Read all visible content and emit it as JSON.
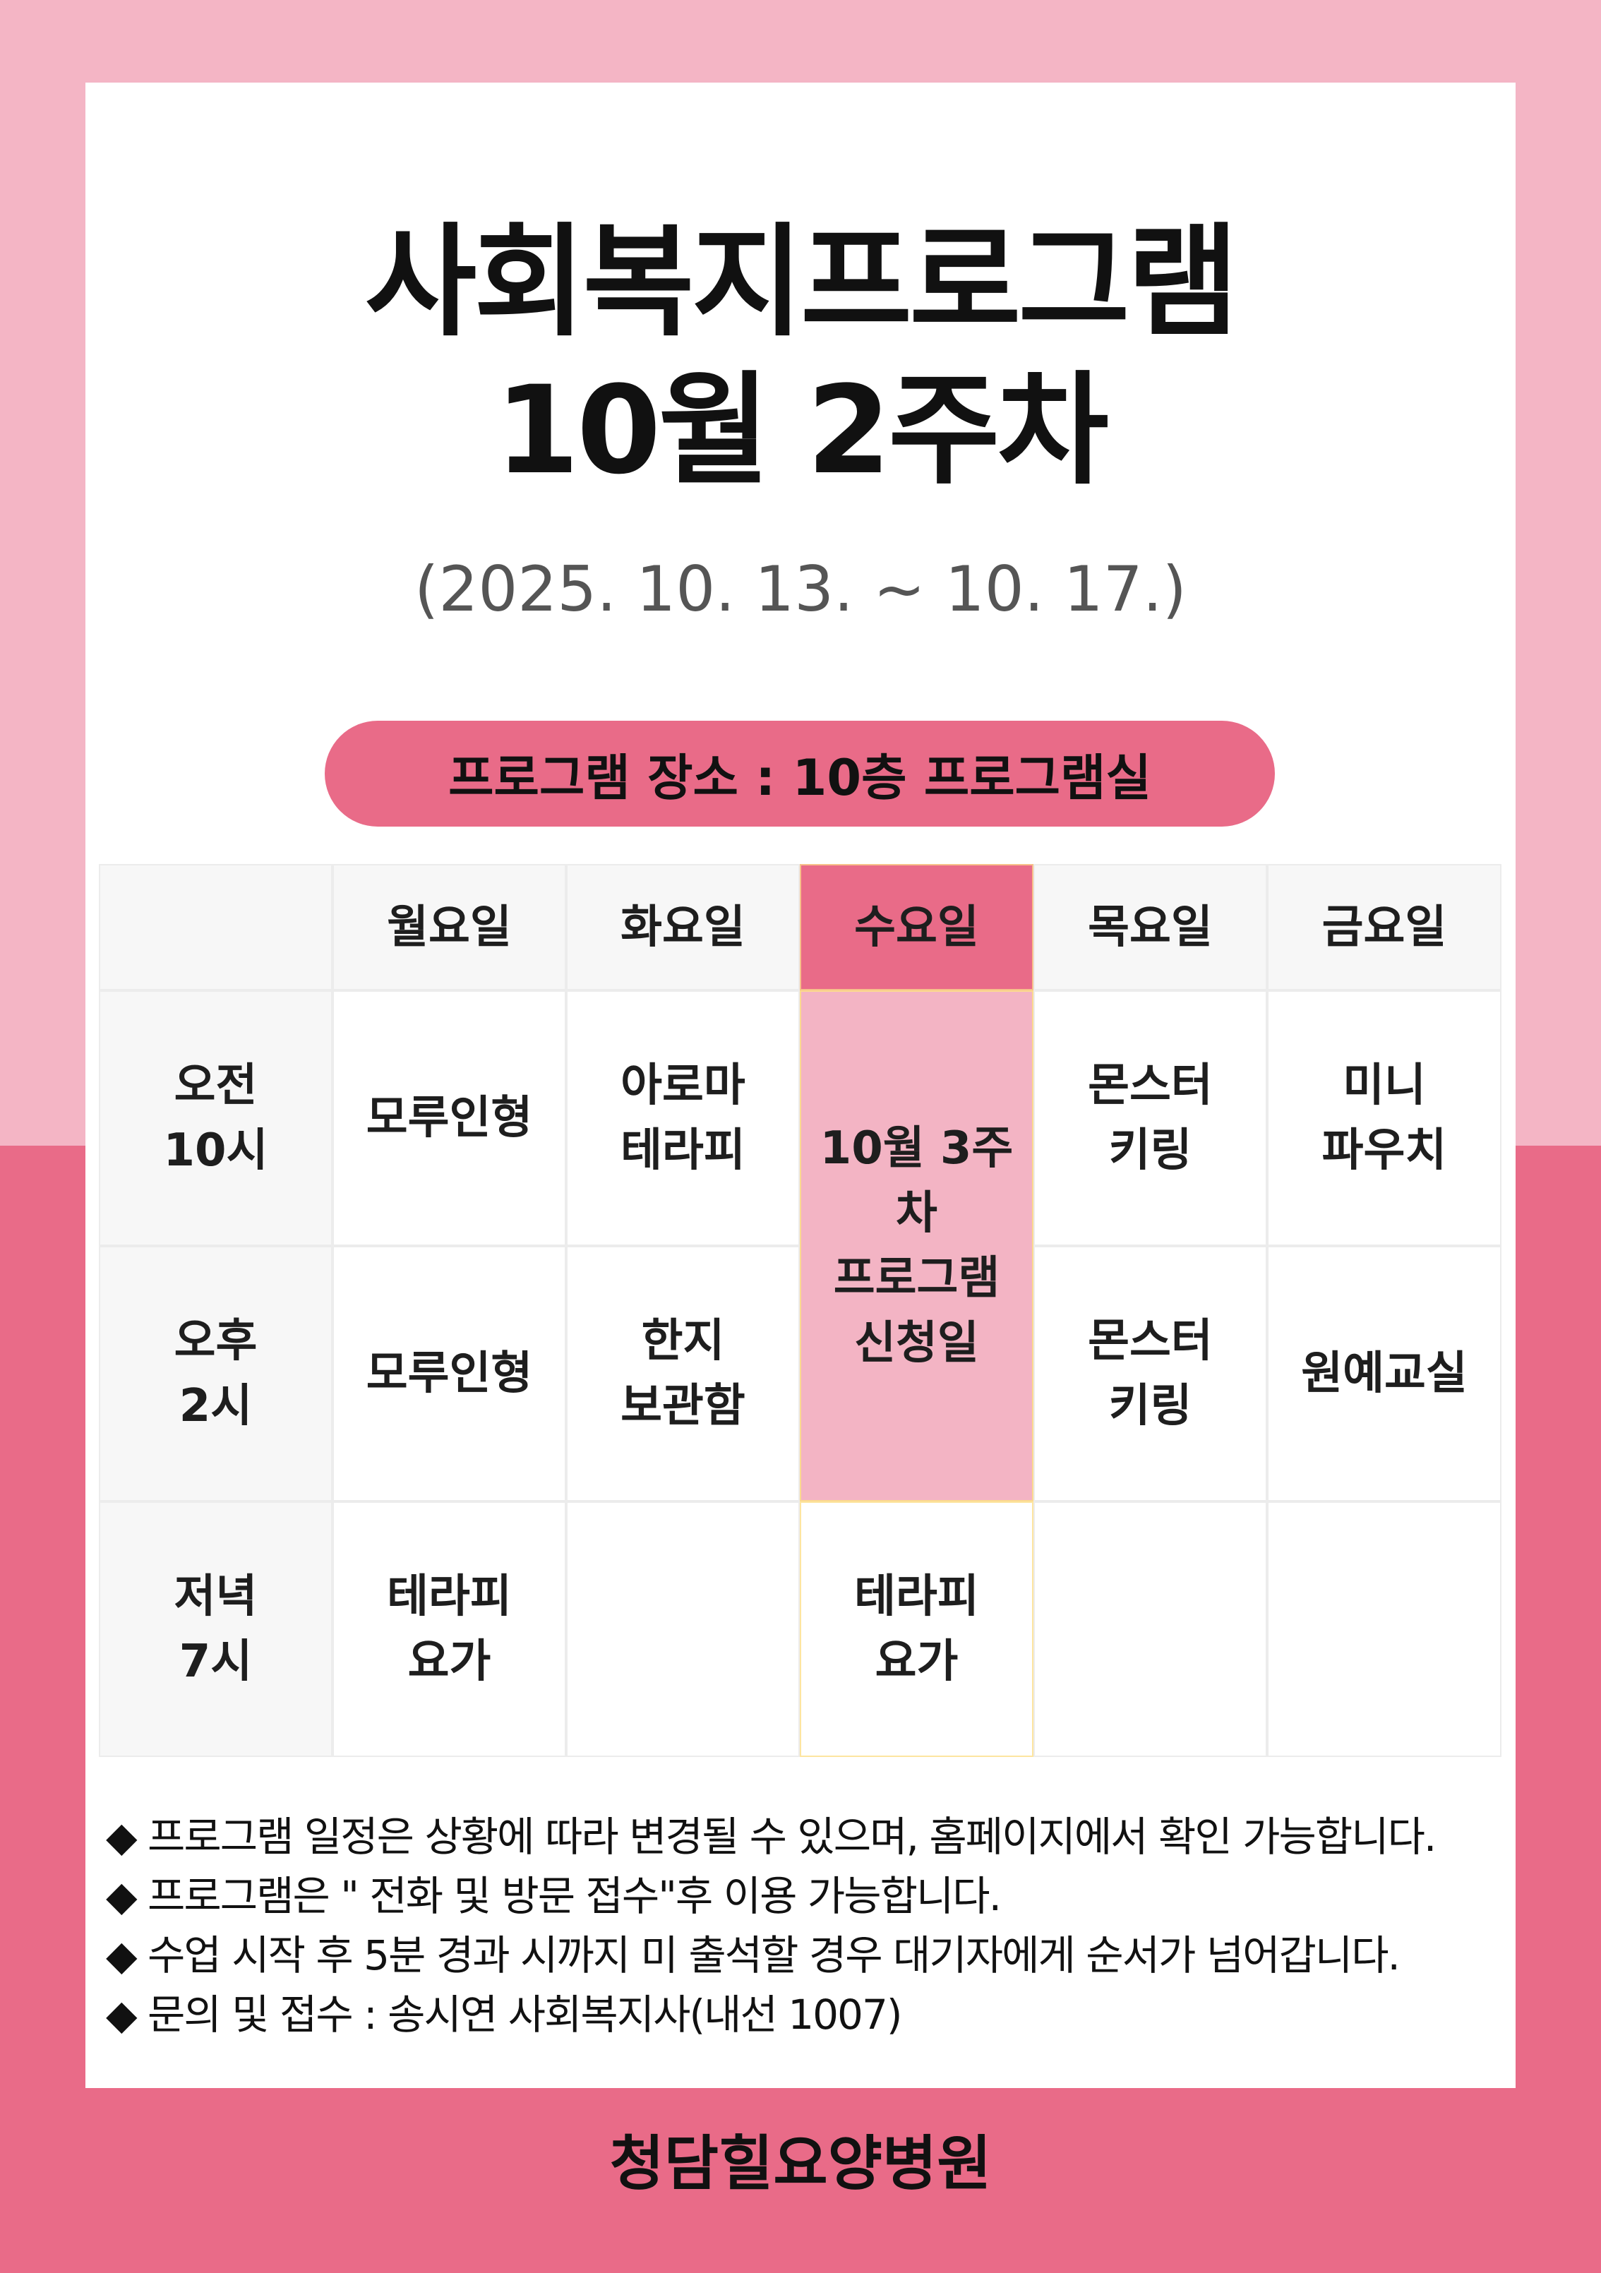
{
  "colors": {
    "top_band": "#f4b5c5",
    "accent": "#e96b88",
    "highlight": "#f3b4c4",
    "card": "#ffffff"
  },
  "title": {
    "line1": "사회복지프로그램",
    "line2": "10월 2주차"
  },
  "date_range": "(2025. 10. 13. ~ 10. 17.)",
  "location": "프로그램 장소 : 10층 프로그램실",
  "schedule": {
    "days": [
      "월요일",
      "화요일",
      "수요일",
      "목요일",
      "금요일"
    ],
    "rows": [
      {
        "time": "오전\n10시",
        "cells": [
          "모루인형",
          "아로마\n테라피",
          "",
          "몬스터\n키링",
          "미니\n파우치"
        ]
      },
      {
        "time": "오후\n2시",
        "cells": [
          "모루인형",
          "한지\n보관함",
          "",
          "몬스터\n키링",
          "원예교실"
        ]
      },
      {
        "time": "저녁\n7시",
        "cells": [
          "테라피\n요가",
          "",
          "테라피\n요가",
          "",
          ""
        ]
      }
    ],
    "wednesday_merged": "10월 3주차\n프로그램\n신청일"
  },
  "notes": [
    {
      "icon": "diamond",
      "text": "프로그램 일정은 상황에 따라 변경될 수 있으며, 홈페이지에서 확인 가능합니다."
    },
    {
      "icon": "diamond",
      "text": "프로그램은 \" 전화 및 방문 접수\"후 이용 가능합니다."
    },
    {
      "icon": "diamond",
      "text": "수업 시작 후 5분 경과 시까지 미 출석할 경우 대기자에게 순서가 넘어갑니다."
    },
    {
      "icon": "diamond",
      "text": "문의 및 접수 : 송시연 사회복지사(내선 1007)"
    }
  ],
  "footer": "청담힐요양병원"
}
